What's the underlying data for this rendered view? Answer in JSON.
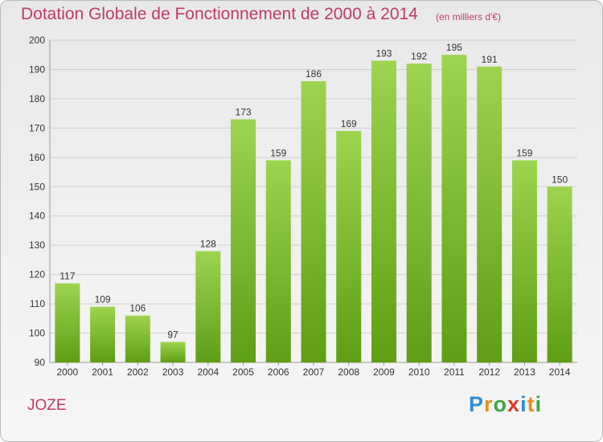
{
  "header": {
    "title": "Dotation Globale de Fonctionnement de 2000 à 2014",
    "unit": "(en milliers d'€)"
  },
  "footer": {
    "commune": "JOZE",
    "logo_letters": [
      "P",
      "r",
      "o",
      "x",
      "i",
      "t",
      "i"
    ],
    "logo_colors": [
      "#2e8fd8",
      "#f08a1c",
      "#3aa843",
      "#e23a2a",
      "#2e8fd8",
      "#f08a1c",
      "#3aa843"
    ]
  },
  "colors": {
    "bar_top": "#9dd44f",
    "bar_bottom": "#5f9e15",
    "title": "#c0396b",
    "grid": "#cfcfcf",
    "axis_text": "#333333"
  },
  "chart_data": {
    "type": "bar",
    "title": "Dotation Globale de Fonctionnement de 2000 à 2014",
    "xlabel": "",
    "ylabel": "",
    "categories": [
      "2000",
      "2001",
      "2002",
      "2003",
      "2004",
      "2005",
      "2006",
      "2007",
      "2008",
      "2009",
      "2010",
      "2011",
      "2012",
      "2013",
      "2014"
    ],
    "values": [
      117,
      109,
      106,
      97,
      128,
      173,
      159,
      186,
      169,
      193,
      192,
      195,
      191,
      159,
      150
    ],
    "ylim": [
      90,
      200
    ],
    "yticks": [
      90,
      100,
      110,
      120,
      130,
      140,
      150,
      160,
      170,
      180,
      190,
      200
    ],
    "grid": true,
    "data_labels": true
  }
}
